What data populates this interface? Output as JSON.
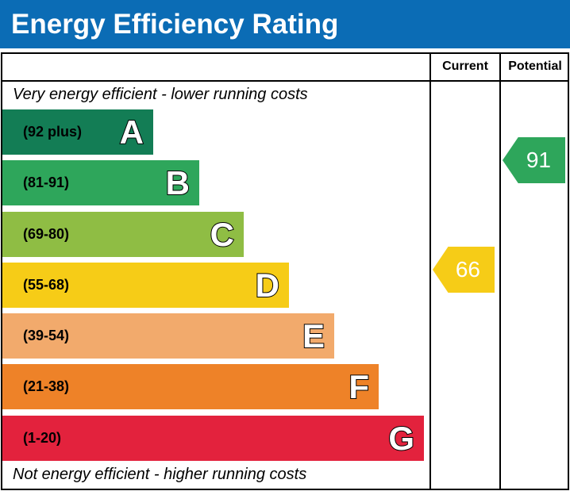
{
  "chart_data": {
    "type": "bar",
    "title": "Energy Efficiency Rating",
    "columns": [
      "Current",
      "Potential"
    ],
    "top_caption": "Very energy efficient - lower running costs",
    "bottom_caption": "Not energy efficient - higher running costs",
    "bands": [
      {
        "letter": "A",
        "range": "(92 plus)",
        "color": "#137d55"
      },
      {
        "letter": "B",
        "range": "(81-91)",
        "color": "#2ea65b"
      },
      {
        "letter": "C",
        "range": "(69-80)",
        "color": "#8fbd44"
      },
      {
        "letter": "D",
        "range": "(55-68)",
        "color": "#f6cc17"
      },
      {
        "letter": "E",
        "range": "(39-54)",
        "color": "#f2aa6c"
      },
      {
        "letter": "F",
        "range": "(21-38)",
        "color": "#ee8228"
      },
      {
        "letter": "G",
        "range": "(1-20)",
        "color": "#e3223d"
      }
    ],
    "current": {
      "value": "66",
      "band": "D",
      "color": "#f6cc17"
    },
    "potential": {
      "value": "91",
      "band": "B",
      "color": "#2ea65b"
    }
  }
}
